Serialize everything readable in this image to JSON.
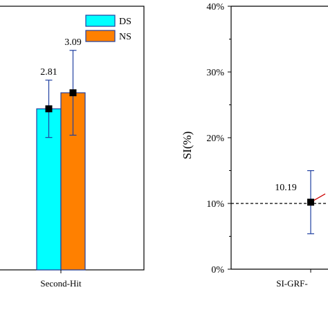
{
  "chart_data": [
    {
      "type": "bar",
      "categories": [
        "Second-Hit"
      ],
      "series": [
        {
          "name": "DS",
          "color": "#00FFFF",
          "values": [
            2.81
          ],
          "error": [
            0.5
          ]
        },
        {
          "name": "NS",
          "color": "#FF8000",
          "values": [
            3.09
          ],
          "error": [
            0.74
          ]
        }
      ],
      "data_labels": [
        "2.81",
        "3.09"
      ],
      "ylim": [
        0,
        4.6
      ],
      "legend": "top-right",
      "xlabel": "",
      "ylabel": ""
    },
    {
      "type": "scatter",
      "categories": [
        "SI-GRF-"
      ],
      "points": [
        {
          "x": "SI-GRF-",
          "y": 10.19,
          "error": 4.8,
          "label": "10.19"
        }
      ],
      "reference_line": 10,
      "yticks": [
        "0%",
        "10%",
        "20%",
        "30%",
        "40%"
      ],
      "ylim": [
        0,
        40
      ],
      "ylabel": "SI(%)",
      "xlabel": "",
      "series_color": "#000000",
      "trend_color": "#cc0000"
    }
  ]
}
